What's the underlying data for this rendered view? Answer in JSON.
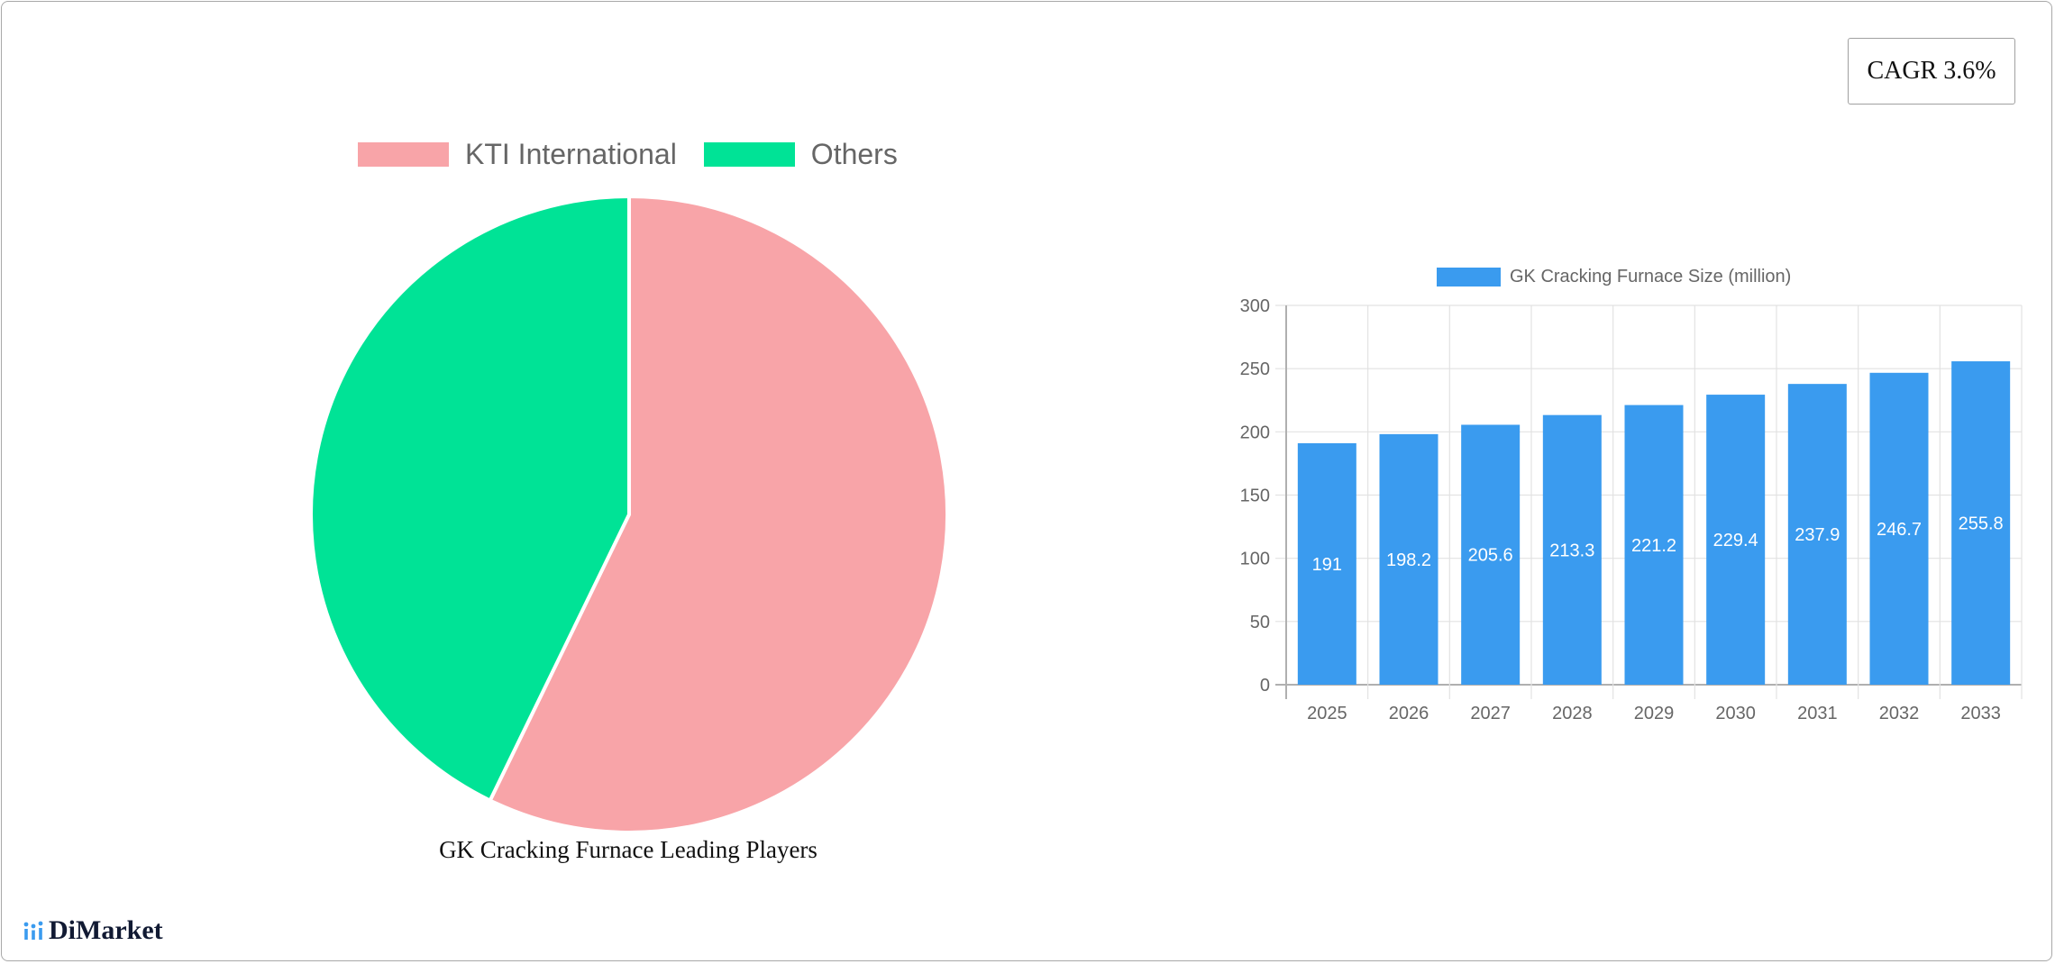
{
  "badge": {
    "cagr_label": "CAGR 3.6%"
  },
  "pie": {
    "legend": [
      {
        "label": "KTI International",
        "color": "#f8a4a8"
      },
      {
        "label": "Others",
        "color": "#00e396"
      }
    ],
    "caption": "GK Cracking Furnace Leading Players"
  },
  "bar": {
    "legend_label": "GK Cracking Furnace Size (million)",
    "color": "#3a9bef"
  },
  "brand": {
    "name": "DiMarket",
    "accent": "#3a9bef"
  },
  "chart_data": [
    {
      "type": "pie",
      "title": "GK Cracking Furnace Leading Players",
      "categories": [
        "KTI International",
        "Others"
      ],
      "values": [
        57.2,
        42.8
      ],
      "colors": [
        "#f8a4a8",
        "#00e396"
      ],
      "legend_position": "top"
    },
    {
      "type": "bar",
      "title": "",
      "categories": [
        "2025",
        "2026",
        "2027",
        "2028",
        "2029",
        "2030",
        "2031",
        "2032",
        "2033"
      ],
      "series": [
        {
          "name": "GK Cracking Furnace Size (million)",
          "values": [
            191,
            198.2,
            205.6,
            213.3,
            221.2,
            229.4,
            237.9,
            246.7,
            255.8
          ]
        }
      ],
      "data_labels": [
        "191",
        "198.2",
        "205.6",
        "213.3",
        "221.2",
        "229.4",
        "237.9",
        "246.7",
        "255.8"
      ],
      "xlabel": "",
      "ylabel": "",
      "ylim": [
        0,
        300
      ],
      "yticks": [
        0,
        50,
        100,
        150,
        200,
        250,
        300
      ],
      "grid": true,
      "legend_position": "top",
      "annotation": "CAGR 3.6%"
    }
  ]
}
